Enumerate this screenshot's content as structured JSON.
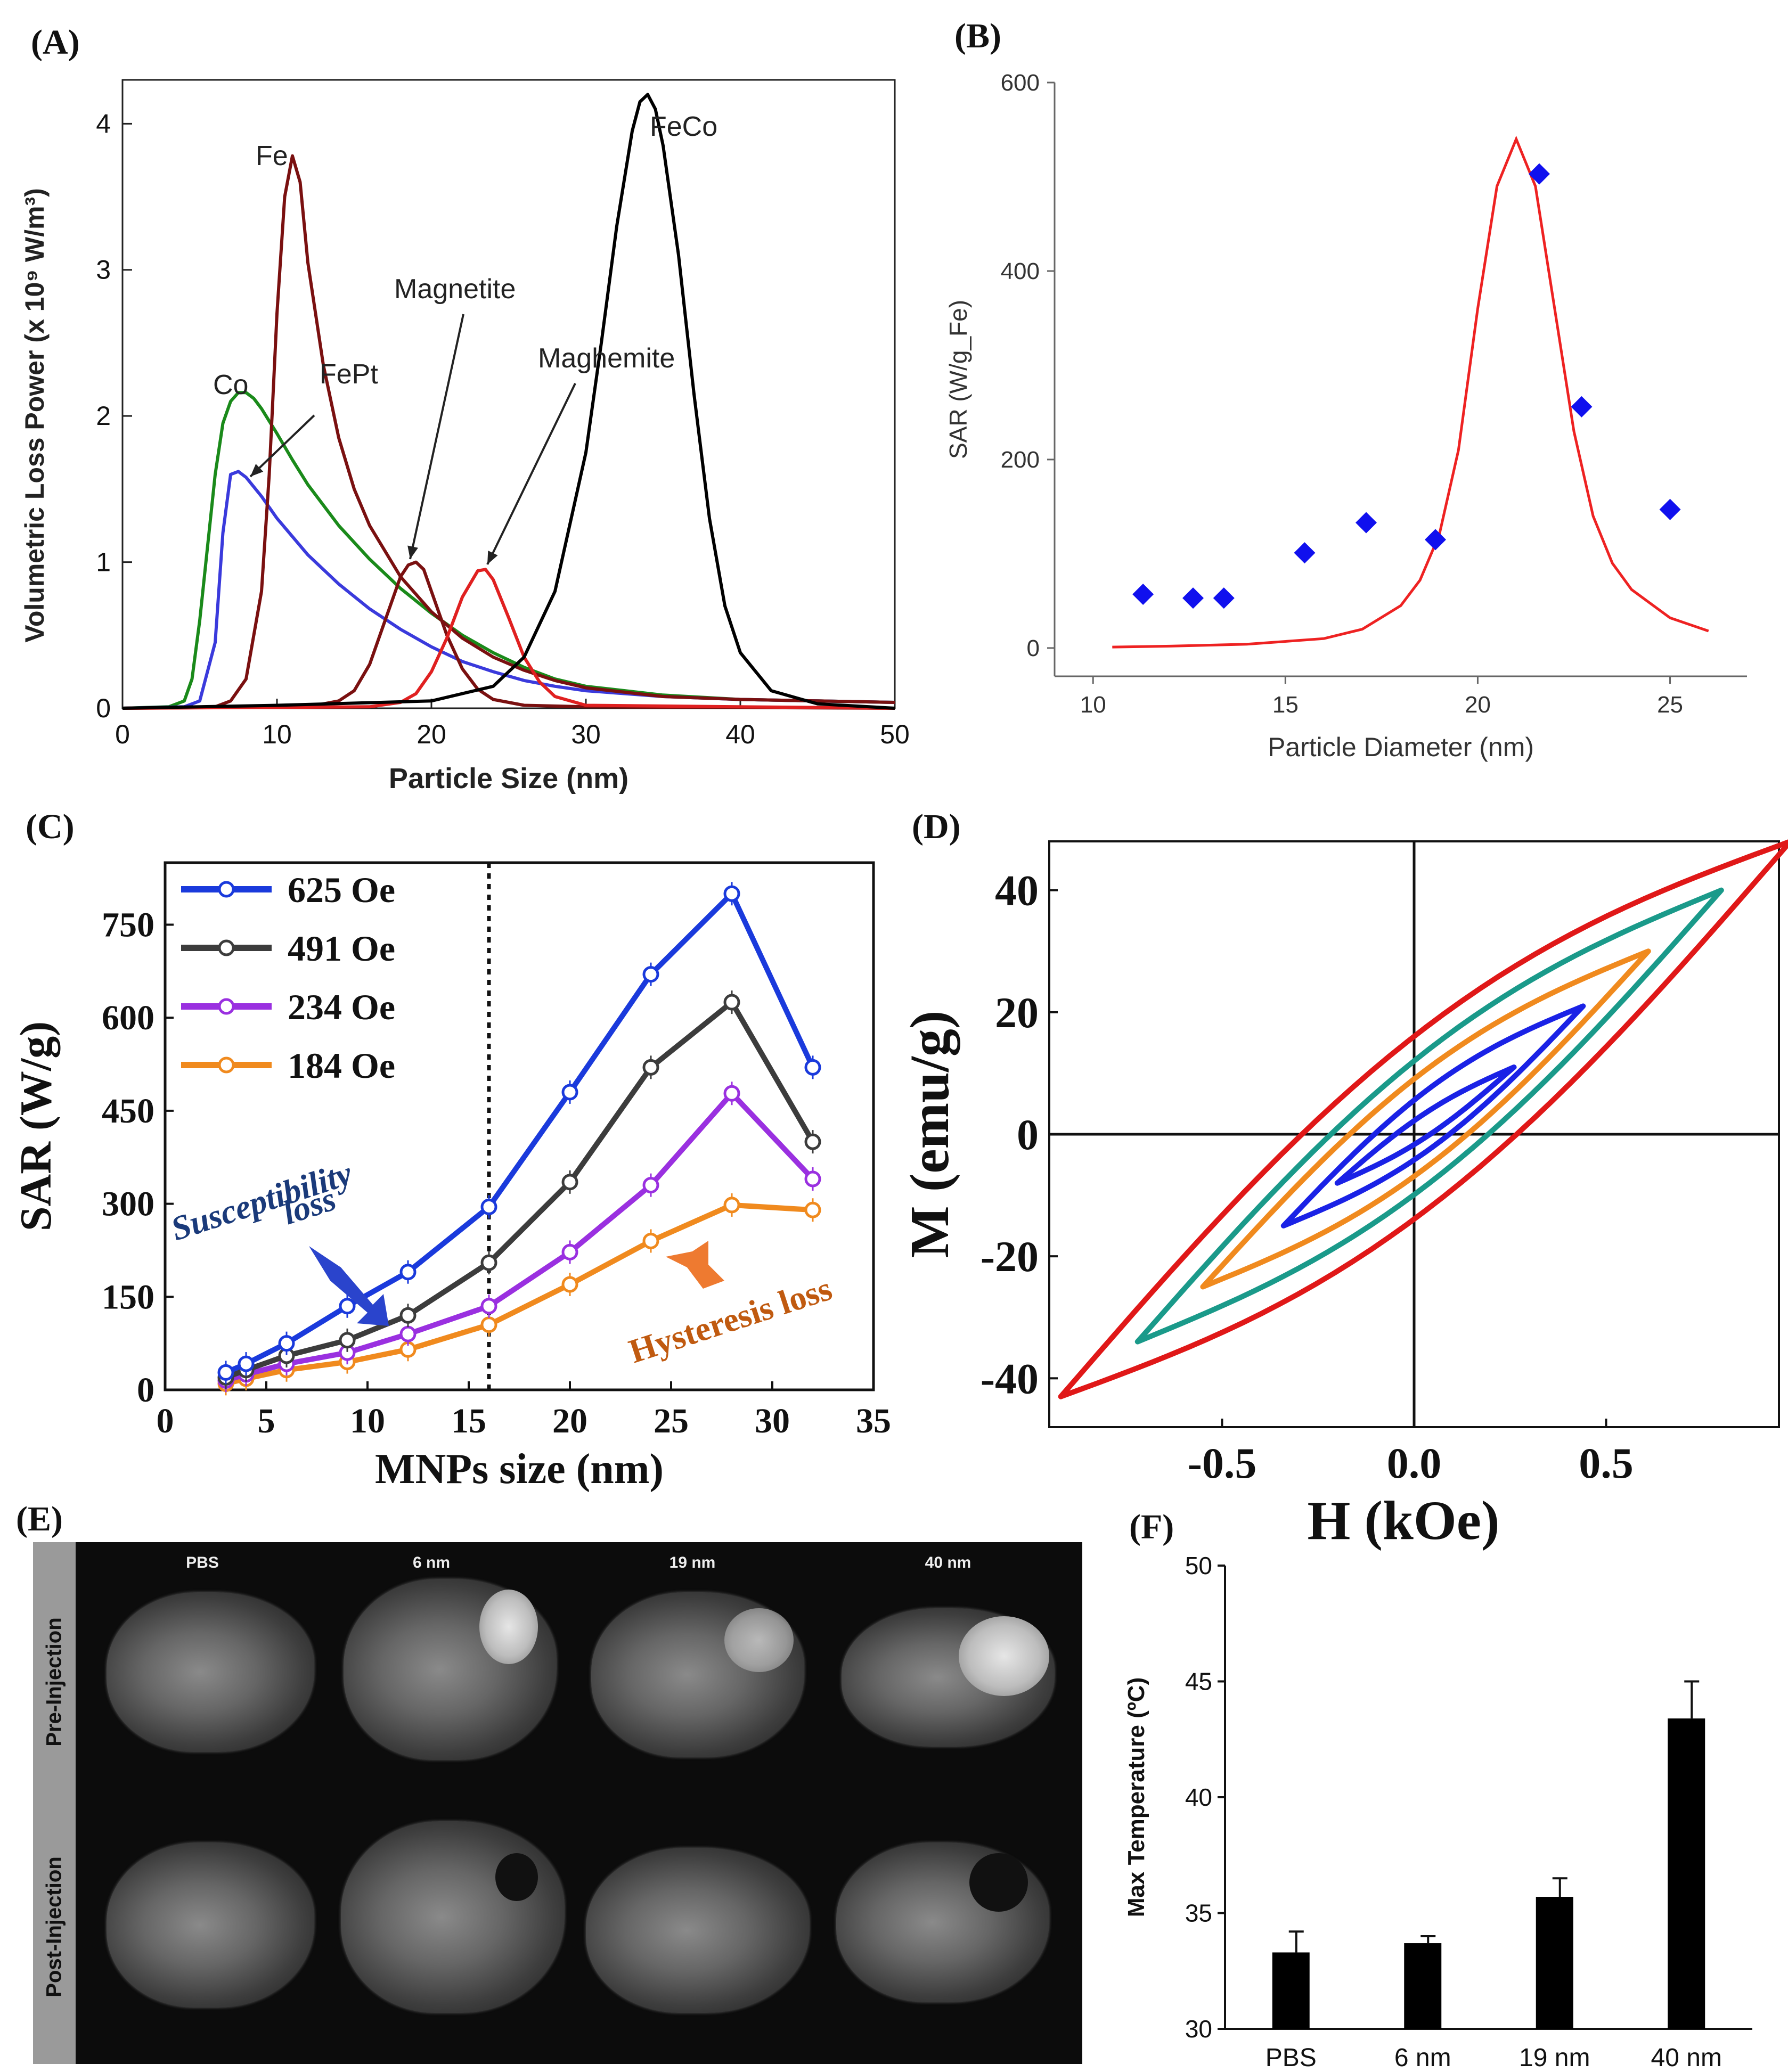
{
  "panels": {
    "A": {
      "letter": "(A)",
      "chart_data": {
        "type": "line",
        "xlabel": "Particle Size (nm)",
        "ylabel": "Volumetric Loss Power (x 10⁹ W/m³)",
        "xlim": [
          0,
          50
        ],
        "ylim": [
          0,
          4.3
        ],
        "xticks": [
          0,
          10,
          20,
          30,
          40,
          50
        ],
        "yticks": [
          0,
          1,
          2,
          3,
          4
        ],
        "series": [
          {
            "name": "Co",
            "color": "#1a8a1a",
            "x": [
              0,
              3,
              4,
              4.5,
              5,
              5.5,
              6,
              6.5,
              7,
              7.5,
              8,
              8.5,
              9,
              10,
              11,
              12,
              14,
              16,
              18,
              20,
              22,
              24,
              26,
              28,
              30,
              35,
              40,
              45,
              50
            ],
            "y": [
              0,
              0.01,
              0.05,
              0.2,
              0.6,
              1.1,
              1.6,
              1.95,
              2.1,
              2.16,
              2.16,
              2.12,
              2.05,
              1.88,
              1.7,
              1.53,
              1.25,
              1.02,
              0.82,
              0.65,
              0.5,
              0.38,
              0.28,
              0.2,
              0.15,
              0.09,
              0.06,
              0.05,
              0.04
            ]
          },
          {
            "name": "FePt",
            "color": "#3a3adc",
            "x": [
              0,
              4,
              5,
              6,
              6.5,
              7,
              7.5,
              8,
              9,
              10,
              12,
              14,
              16,
              18,
              20,
              22,
              24,
              26,
              28,
              30,
              35,
              40,
              45,
              50
            ],
            "y": [
              0,
              0.01,
              0.05,
              0.45,
              1.2,
              1.6,
              1.62,
              1.58,
              1.45,
              1.3,
              1.05,
              0.85,
              0.68,
              0.54,
              0.42,
              0.32,
              0.25,
              0.19,
              0.15,
              0.12,
              0.08,
              0.06,
              0.05,
              0.04
            ]
          },
          {
            "name": "Fe",
            "color": "#7a1010",
            "x": [
              0,
              6,
              7,
              8,
              9,
              9.5,
              10,
              10.5,
              11,
              11.5,
              12,
              13,
              14,
              15,
              16,
              18,
              20,
              22,
              24,
              26,
              28,
              30,
              35,
              40,
              45,
              50
            ],
            "y": [
              0,
              0.01,
              0.05,
              0.2,
              0.8,
              1.6,
              2.7,
              3.5,
              3.78,
              3.6,
              3.05,
              2.35,
              1.85,
              1.5,
              1.25,
              0.9,
              0.66,
              0.48,
              0.35,
              0.26,
              0.19,
              0.14,
              0.08,
              0.06,
              0.05,
              0.04
            ]
          },
          {
            "name": "Magnetite",
            "color": "#7a1010",
            "x": [
              0,
              12,
              14,
              15,
              16,
              17,
              18,
              18.5,
              19,
              19.5,
              20,
              21,
              22,
              23,
              24,
              26,
              30,
              50
            ],
            "y": [
              0,
              0.01,
              0.05,
              0.12,
              0.3,
              0.6,
              0.9,
              0.98,
              1.0,
              0.95,
              0.8,
              0.5,
              0.27,
              0.13,
              0.06,
              0.02,
              0.01,
              0
            ]
          },
          {
            "name": "Maghemite",
            "color": "#e02020",
            "x": [
              0,
              16,
              18,
              19,
              20,
              21,
              22,
              23,
              23.5,
              24,
              25,
              26,
              27,
              28,
              30,
              50
            ],
            "y": [
              0,
              0.01,
              0.04,
              0.1,
              0.25,
              0.48,
              0.76,
              0.94,
              0.95,
              0.88,
              0.62,
              0.35,
              0.18,
              0.08,
              0.02,
              0
            ]
          },
          {
            "name": "FeCo",
            "color": "#000000",
            "x": [
              0,
              10,
              20,
              24,
              26,
              28,
              30,
              31,
              32,
              33,
              33.5,
              34,
              34.5,
              35,
              36,
              37,
              38,
              39,
              40,
              42,
              45,
              50
            ],
            "y": [
              0,
              0.02,
              0.05,
              0.15,
              0.35,
              0.8,
              1.75,
              2.5,
              3.3,
              3.95,
              4.15,
              4.2,
              4.1,
              3.85,
              3.1,
              2.15,
              1.3,
              0.7,
              0.38,
              0.12,
              0.03,
              0
            ]
          }
        ],
        "annotations": [
          "Co",
          "FePt",
          "Fe",
          "Magnetite",
          "Maghemite",
          "FeCo"
        ]
      }
    },
    "B": {
      "letter": "(B)",
      "chart_data": {
        "type": "scatter",
        "xlabel": "Particle Diameter (nm)",
        "ylabel": "SAR (W/g_Fe)",
        "xlim": [
          9,
          27
        ],
        "ylim": [
          -30,
          600
        ],
        "xticks": [
          10,
          15,
          20,
          25
        ],
        "yticks": [
          0,
          200,
          400,
          600
        ],
        "points": {
          "name": "",
          "color": "#1010ee",
          "x": [
            11.3,
            12.6,
            13.4,
            15.5,
            17.1,
            18.9,
            21.6,
            22.7,
            25.0
          ],
          "y": [
            57,
            53,
            53,
            101,
            133,
            115,
            503,
            256,
            147
          ]
        },
        "fit": {
          "color": "#ee2222",
          "x": [
            10.5,
            12,
            14,
            16,
            17,
            18,
            18.5,
            19,
            19.5,
            20,
            20.5,
            21,
            21.5,
            22,
            22.5,
            23,
            23.5,
            24,
            25,
            26
          ],
          "y": [
            1,
            2,
            4,
            10,
            20,
            45,
            72,
            120,
            210,
            360,
            490,
            540,
            490,
            360,
            230,
            140,
            90,
            62,
            32,
            18
          ]
        }
      }
    },
    "C": {
      "letter": "(C)",
      "chart_data": {
        "type": "line",
        "xlabel": "MNPs size (nm)",
        "ylabel": "SAR (W/g)",
        "xlim": [
          0,
          35
        ],
        "ylim": [
          0,
          850
        ],
        "xticks": [
          0,
          5,
          10,
          15,
          20,
          25,
          30,
          35
        ],
        "yticks": [
          0,
          150,
          300,
          450,
          600,
          750
        ],
        "legend": "top-left",
        "vline_x": 16,
        "x": [
          3,
          4,
          6,
          9,
          12,
          16,
          20,
          24,
          28,
          32
        ],
        "series": [
          {
            "name": "625 Oe",
            "color": "#1a3adc",
            "values": [
              28,
              42,
              75,
              135,
              190,
              295,
              480,
              670,
              800,
              520
            ]
          },
          {
            "name": "491 Oe",
            "color": "#3c3c3c",
            "values": [
              20,
              32,
              55,
              80,
              120,
              205,
              335,
              520,
              625,
              400
            ]
          },
          {
            "name": "234 Oe",
            "color": "#9a30e0",
            "values": [
              15,
              25,
              42,
              60,
              90,
              135,
              222,
              330,
              478,
              340
            ]
          },
          {
            "name": "184 Oe",
            "color": "#f08a1e",
            "values": [
              10,
              18,
              32,
              45,
              65,
              105,
              170,
              240,
              298,
              290
            ]
          }
        ],
        "annotations": [
          "Susceptibility loss",
          "Hysteresis loss"
        ]
      }
    },
    "D": {
      "letter": "(D)",
      "chart_data": {
        "type": "line",
        "xlabel": "H (kOe)",
        "ylabel": "M (emu/g)",
        "xlim": [
          -0.95,
          0.95
        ],
        "ylim": [
          -48,
          48
        ],
        "xticks": [
          -0.5,
          0.0,
          0.5
        ],
        "xtick_labels": [
          "-0.5",
          "0.0",
          "0.5"
        ],
        "yticks": [
          -40,
          -20,
          0,
          20,
          40
        ],
        "loops": [
          {
            "color": "#e01818",
            "hmax": 0.98,
            "mmax": 48,
            "hmin": -0.92,
            "mmin": -43,
            "width": 15
          },
          {
            "color": "#1a9a8a",
            "hmax": 0.8,
            "mmax": 40,
            "hmin": -0.72,
            "mmin": -34,
            "width": 11
          },
          {
            "color": "#f08a1e",
            "hmax": 0.61,
            "mmax": 30,
            "hmin": -0.55,
            "mmin": -25,
            "width": 8
          },
          {
            "color": "#1a22e6",
            "hmax": 0.44,
            "mmax": 21,
            "hmin": -0.34,
            "mmin": -15,
            "width": 5
          },
          {
            "color": "#1a22e6",
            "hmax": 0.26,
            "mmax": 11,
            "hmin": -0.2,
            "mmin": -8,
            "width": 2
          }
        ]
      }
    },
    "E": {
      "letter": "(E)",
      "row_labels": [
        "Pre-Injection",
        "Post-Injection"
      ],
      "col_labels": [
        "PBS",
        "6 nm",
        "19 nm",
        "40 nm"
      ]
    },
    "F": {
      "letter": "(F)",
      "chart_data": {
        "type": "bar",
        "categories": [
          "PBS",
          "6 nm",
          "19 nm",
          "40 nm"
        ],
        "values": [
          33.3,
          33.7,
          35.7,
          43.4
        ],
        "errors": [
          0.9,
          0.3,
          0.8,
          1.6
        ],
        "ylabel": "Max Temperature (ºC)",
        "ylim": [
          30,
          50
        ],
        "yticks": [
          30,
          35,
          40,
          45,
          50
        ],
        "bar_color": "#000000"
      }
    }
  }
}
